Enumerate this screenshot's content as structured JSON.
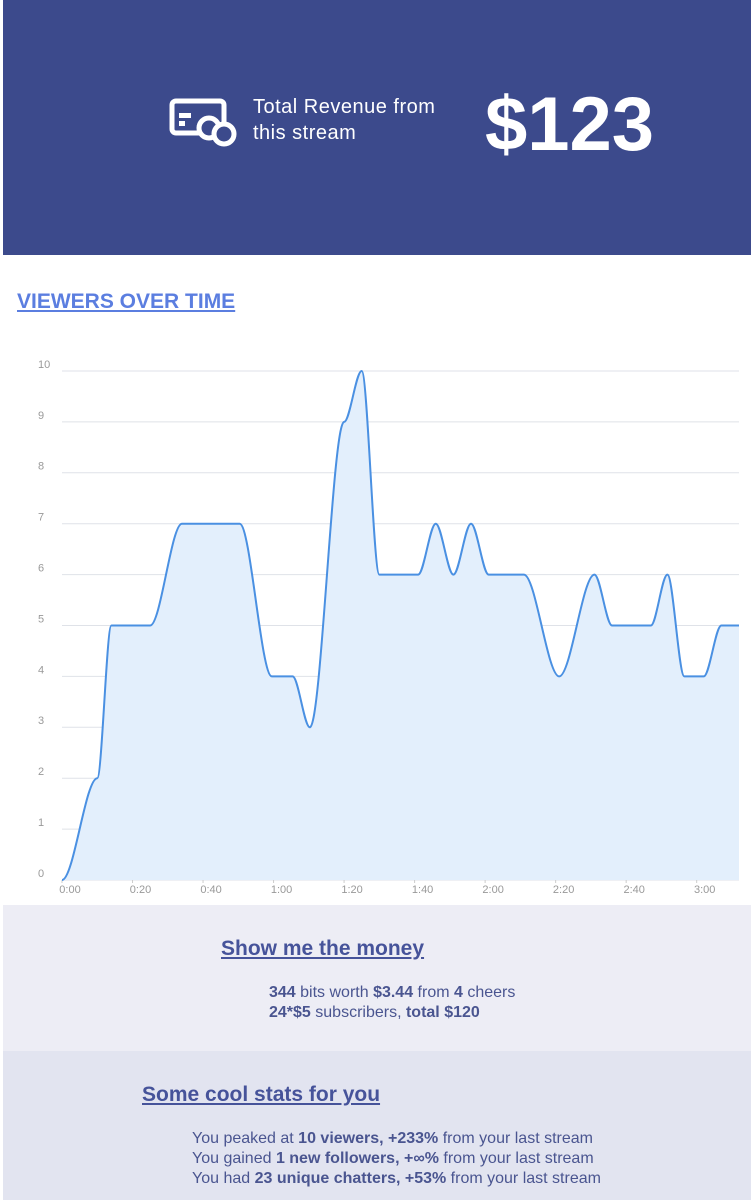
{
  "header": {
    "label": "Total Revenue from this stream",
    "amount": "$123"
  },
  "chart_data": {
    "type": "area",
    "title": "VIEWERS OVER TIME",
    "color": "#4a90e2",
    "fill": "#e3effc",
    "grid": true,
    "x": [
      0,
      10,
      14,
      25,
      34,
      50.4,
      59.5,
      65.4,
      70.3,
      80,
      85,
      90,
      101,
      106,
      111,
      116,
      121,
      131,
      141,
      151,
      156,
      167,
      171.7,
      176.5,
      182,
      187,
      192
    ],
    "values": [
      0,
      2,
      5,
      5,
      7,
      7,
      4,
      4,
      3,
      9,
      10,
      6,
      6,
      7,
      6,
      7,
      6,
      6,
      4,
      6,
      5,
      5,
      6,
      4,
      4,
      5,
      5
    ],
    "xlim": [
      0,
      192
    ],
    "ylim": [
      0,
      10
    ],
    "xticks": [
      {
        "value": 0,
        "label": "0:00"
      },
      {
        "value": 20,
        "label": "0:20"
      },
      {
        "value": 40,
        "label": "0:40"
      },
      {
        "value": 60,
        "label": "1:00"
      },
      {
        "value": 80,
        "label": "1:20"
      },
      {
        "value": 100,
        "label": "1:40"
      },
      {
        "value": 120,
        "label": "2:00"
      },
      {
        "value": 140,
        "label": "2:20"
      },
      {
        "value": 160,
        "label": "2:40"
      },
      {
        "value": 180,
        "label": "3:00"
      }
    ],
    "yticks": [
      0,
      1,
      2,
      3,
      4,
      5,
      6,
      7,
      8,
      9,
      10
    ]
  },
  "money": {
    "title": "Show me the money",
    "lines": [
      [
        {
          "text": "344",
          "bold": true
        },
        {
          "text": " bits worth "
        },
        {
          "text": "$3.44",
          "bold": true
        },
        {
          "text": " from "
        },
        {
          "text": "4",
          "bold": true
        },
        {
          "text": " cheers"
        }
      ],
      [
        {
          "text": "24*$5",
          "bold": true
        },
        {
          "text": " subscribers, "
        },
        {
          "text": "total $120",
          "bold": true
        }
      ]
    ]
  },
  "stats": {
    "title": "Some cool stats for you",
    "lines": [
      [
        {
          "text": "You peaked at "
        },
        {
          "text": "10 viewers, +233%",
          "bold": true
        },
        {
          "text": " from your last stream"
        }
      ],
      [
        {
          "text": "You gained "
        },
        {
          "text": "1 new followers, +∞%",
          "bold": true
        },
        {
          "text": " from your last stream"
        }
      ],
      [
        {
          "text": "You had "
        },
        {
          "text": "23 unique chatters, +53%",
          "bold": true
        },
        {
          "text": " from your last stream"
        }
      ]
    ]
  }
}
